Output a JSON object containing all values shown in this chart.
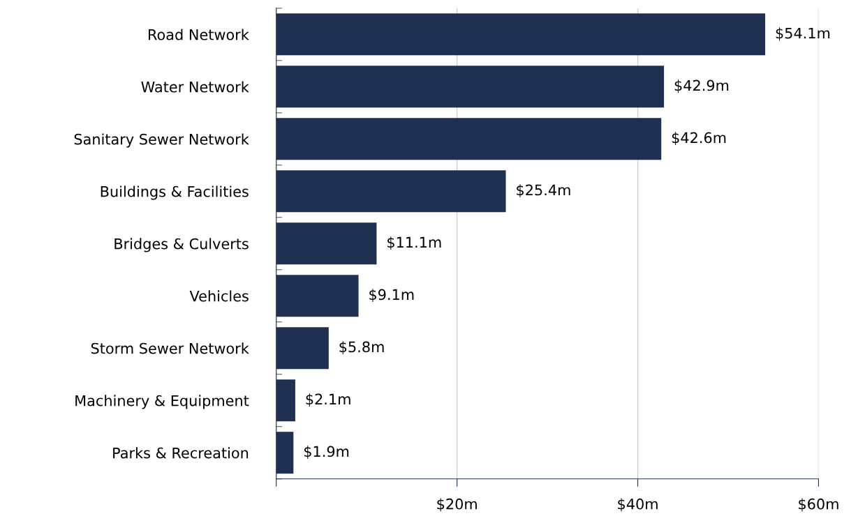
{
  "chart_data": {
    "type": "bar",
    "orientation": "horizontal",
    "categories": [
      "Road Network",
      "Water Network",
      "Sanitary Sewer Network",
      "Buildings & Facilities",
      "Bridges & Culverts",
      "Vehicles",
      "Storm Sewer Network",
      "Machinery & Equipment",
      "Parks & Recreation"
    ],
    "values": [
      54.1,
      42.9,
      42.6,
      25.4,
      11.1,
      9.1,
      5.8,
      2.1,
      1.9
    ],
    "value_labels": [
      "$54.1m",
      "$42.9m",
      "$42.6m",
      "$25.4m",
      "$11.1m",
      "$9.1m",
      "$5.8m",
      "$2.1m",
      "$1.9m"
    ],
    "color": "#1f3050",
    "xlim": [
      0,
      60
    ],
    "xticks": [
      {
        "value": 0,
        "label": null
      },
      {
        "value": 20,
        "label": "$20m"
      },
      {
        "value": 40,
        "label": "$40m"
      },
      {
        "value": 60,
        "label": "$60m"
      }
    ],
    "grid": "x"
  }
}
